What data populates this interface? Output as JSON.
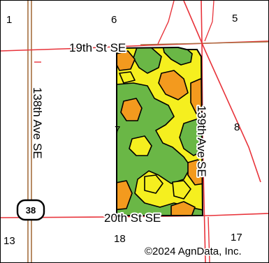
{
  "map": {
    "copyright": "©2024 AgnData, Inc.",
    "colors": {
      "field_yellow": "#f5ef1f",
      "zone_green": "#6ab746",
      "zone_orange": "#f39a1e",
      "road_red": "#e8333a",
      "road_brown": "#a5703f",
      "field_outline": "#000000"
    },
    "roads": {
      "north": "19th St SE",
      "south": "20th St SE",
      "west": "138th Ave SE",
      "east": "139th Ave SE"
    },
    "highway_shield": {
      "label": "38",
      "icon": "state-highway-shield-icon"
    },
    "sections": {
      "nw": "1",
      "n": "6",
      "ne": "5",
      "w": "7",
      "e": "8",
      "sw": "13",
      "s": "18",
      "se": "17"
    }
  }
}
